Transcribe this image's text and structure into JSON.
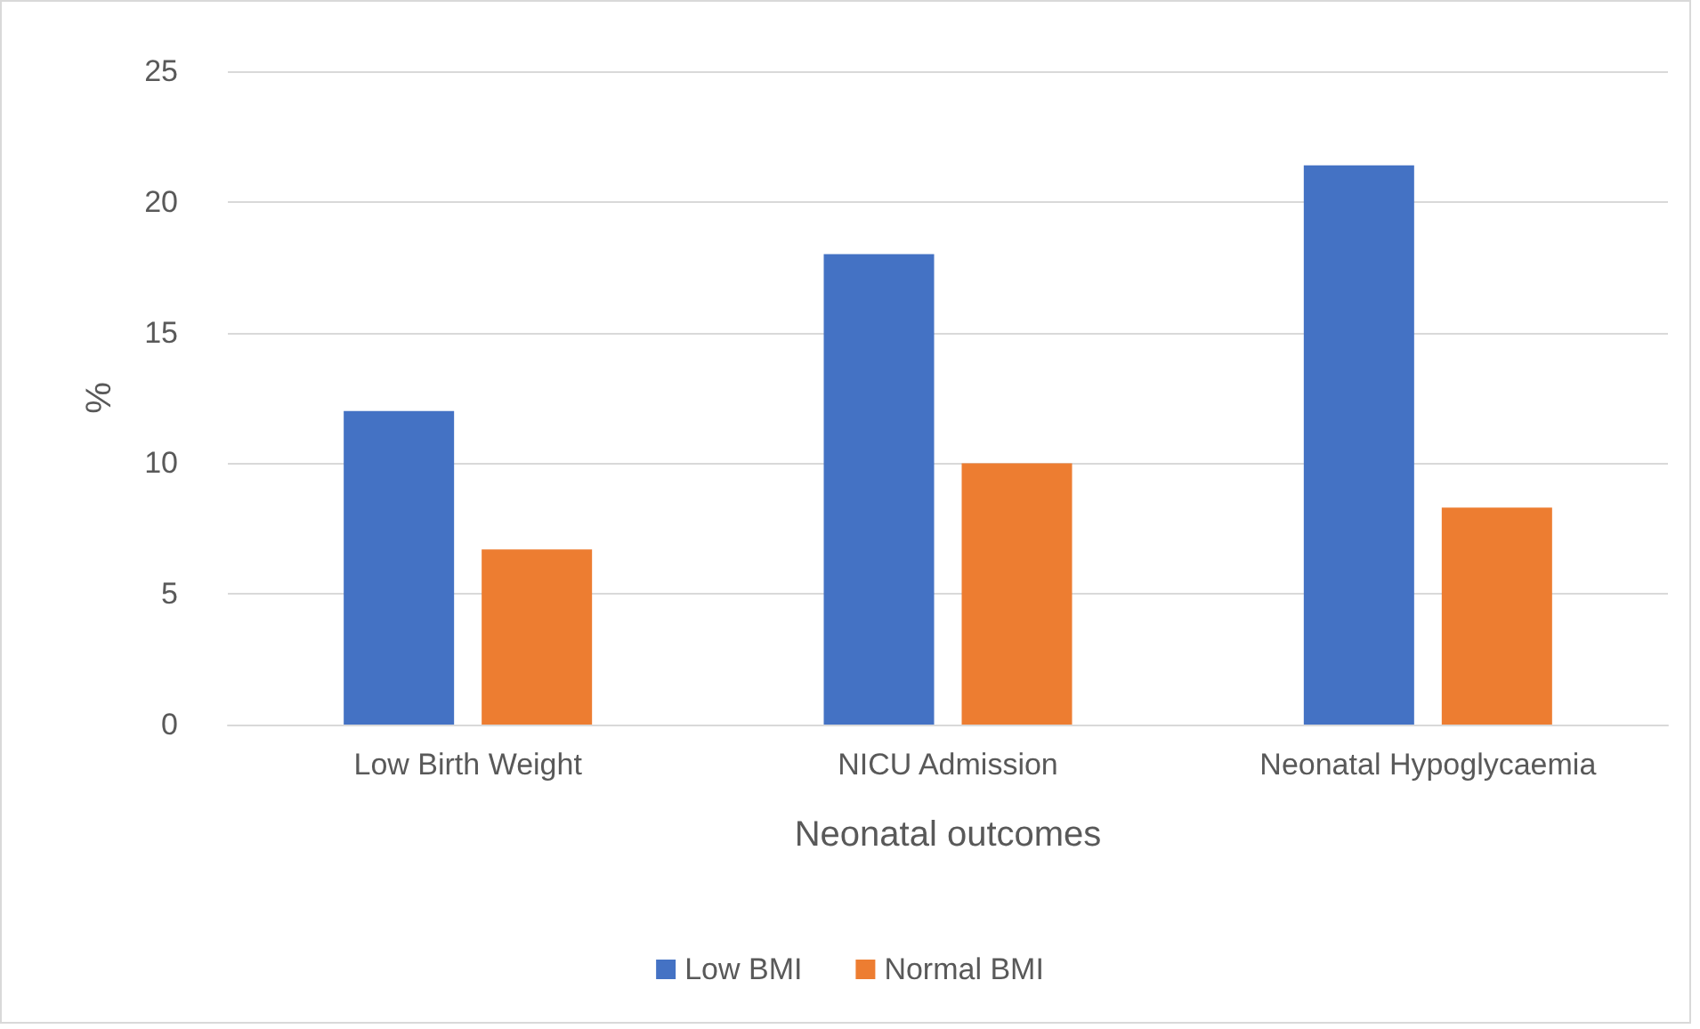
{
  "chart_data": {
    "type": "bar",
    "xlabel": "Neonatal outcomes",
    "ylabel": "%",
    "categories": [
      "Low Birth Weight",
      "NICU Admission",
      "Neonatal Hypoglycaemia"
    ],
    "series": [
      {
        "name": "Low BMI",
        "color": "#4472c4",
        "values": [
          12,
          18,
          21.4
        ]
      },
      {
        "name": "Normal BMI",
        "color": "#ed7d31",
        "values": [
          6.7,
          10,
          8.3
        ]
      }
    ],
    "ylim": [
      0,
      25
    ],
    "yticks": [
      0,
      5,
      10,
      15,
      20,
      25
    ],
    "grid": "y",
    "legend": "bottom"
  }
}
